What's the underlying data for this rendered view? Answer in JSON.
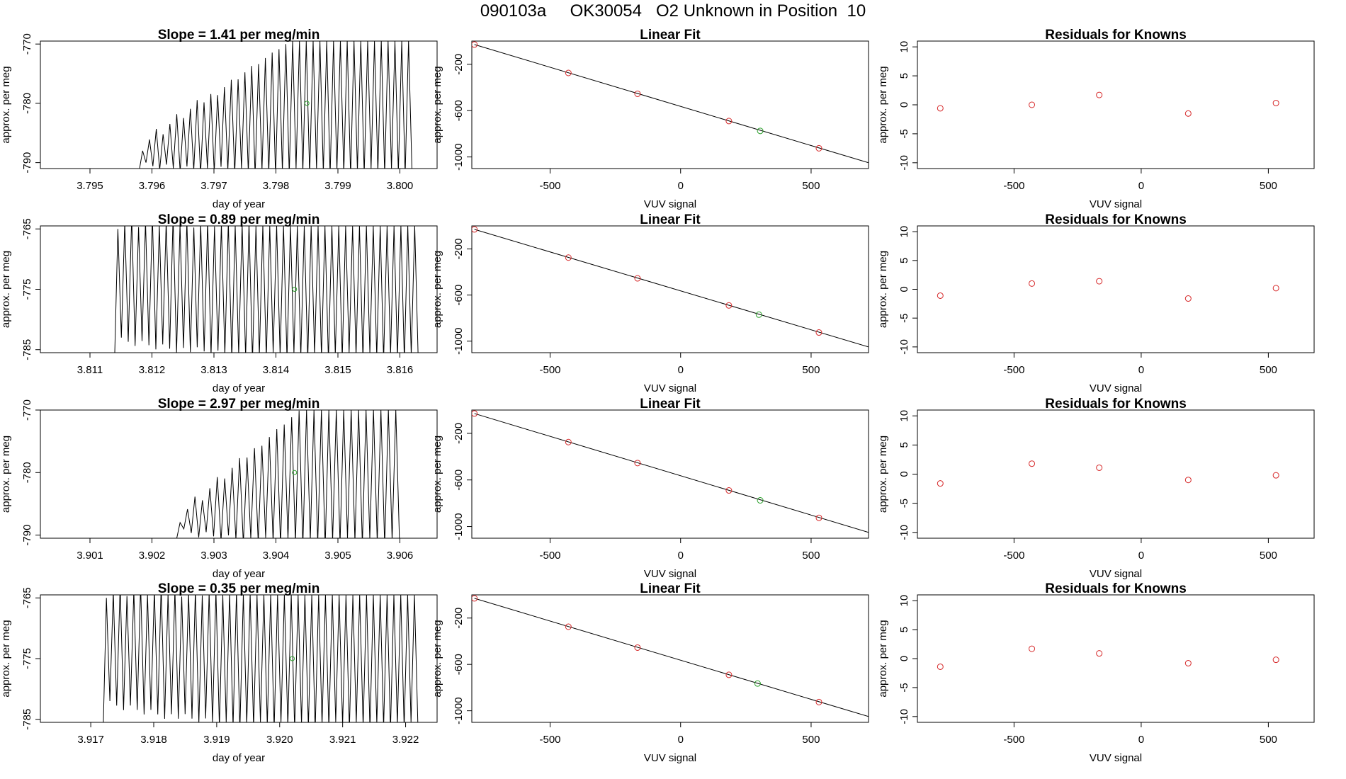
{
  "page_title": "090103a     OK30054   O2 Unknown in Position  10",
  "colors": {
    "data_line": "#000000",
    "known_points": "#d62728",
    "unknown_point": "#2ca02c"
  },
  "chart_data": [
    {
      "type": "line",
      "row": 1,
      "panel": "slope",
      "title": "Slope =  1.41  per meg/min",
      "xlabel": "day of year",
      "ylabel": "approx. per meg",
      "xlim": [
        3.7942,
        3.8006
      ],
      "ylim": [
        -791,
        -769.5
      ],
      "xticks": [
        "3.795",
        "3.796",
        "3.797",
        "3.798",
        "3.799",
        "3.800"
      ],
      "xtick_values": [
        3.795,
        3.796,
        3.797,
        3.798,
        3.799,
        3.8
      ],
      "yticks": [
        "-790",
        "-780",
        "-770"
      ],
      "ytick_values": [
        -790,
        -780,
        -770
      ],
      "baseline_y": -791,
      "osc_start": 3.7958,
      "osc_end": 3.8002,
      "osc_cycles": 40,
      "osc_top": [
        -788,
        -769.5
      ],
      "osc_bottom": [
        -790,
        -791
      ],
      "unknown_point": {
        "x": 3.7985,
        "y": -780
      }
    },
    {
      "type": "scatter",
      "row": 1,
      "panel": "fit",
      "title": "Linear Fit",
      "xlabel": "VUV signal",
      "ylabel": "approx. per meg",
      "xlim": [
        -800,
        720
      ],
      "ylim": [
        -1100,
        0
      ],
      "xticks": [
        "-500",
        "0",
        "500"
      ],
      "xtick_values": [
        -500,
        0,
        500
      ],
      "yticks": [
        "-200",
        "-600",
        "-1000"
      ],
      "ytick_values": [
        -200,
        -600,
        -1000
      ],
      "fit_line": [
        [
          -790,
          -30
        ],
        [
          720,
          -1050
        ]
      ],
      "known_points": [
        {
          "x": -790,
          "y": -30
        },
        {
          "x": -430,
          "y": -275
        },
        {
          "x": -165,
          "y": -455
        },
        {
          "x": 185,
          "y": -690
        },
        {
          "x": 530,
          "y": -925
        }
      ],
      "unknown_point": {
        "x": 305,
        "y": -775
      }
    },
    {
      "type": "scatter",
      "row": 1,
      "panel": "residuals",
      "title": "Residuals for Knowns",
      "xlabel": "VUV signal",
      "ylabel": "approx. per meg",
      "xlim": [
        -880,
        680
      ],
      "ylim": [
        -11,
        11
      ],
      "xticks": [
        "-500",
        "0",
        "500"
      ],
      "xtick_values": [
        -500,
        0,
        500
      ],
      "yticks": [
        "-10",
        "-5",
        "0",
        "5",
        "10"
      ],
      "ytick_values": [
        -10,
        -5,
        0,
        5,
        10
      ],
      "known_points": [
        {
          "x": -790,
          "y": -0.6
        },
        {
          "x": -430,
          "y": 0
        },
        {
          "x": -165,
          "y": 1.7
        },
        {
          "x": 185,
          "y": -1.5
        },
        {
          "x": 530,
          "y": 0.3
        }
      ]
    },
    {
      "type": "line",
      "row": 2,
      "panel": "slope",
      "title": "Slope =  0.89  per meg/min",
      "xlabel": "day of year",
      "ylabel": "approx. per meg",
      "xlim": [
        3.8102,
        3.8166
      ],
      "ylim": [
        -785.5,
        -764.5
      ],
      "xticks": [
        "3.811",
        "3.812",
        "3.813",
        "3.814",
        "3.815",
        "3.816"
      ],
      "xtick_values": [
        3.811,
        3.812,
        3.813,
        3.814,
        3.815,
        3.816
      ],
      "yticks": [
        "-785",
        "-775",
        "-765"
      ],
      "ytick_values": [
        -785,
        -775,
        -765
      ],
      "baseline_y": -785.5,
      "osc_start": 3.8114,
      "osc_end": 3.8163,
      "osc_cycles": 44,
      "osc_top": [
        -765,
        -764.5
      ],
      "osc_bottom": [
        -783,
        -785.5
      ],
      "unknown_point": {
        "x": 3.8143,
        "y": -775
      }
    },
    {
      "type": "scatter",
      "row": 2,
      "panel": "fit",
      "title": "Linear Fit",
      "xlabel": "VUV signal",
      "ylabel": "approx. per meg",
      "xlim": [
        -800,
        720
      ],
      "ylim": [
        -1100,
        0
      ],
      "xticks": [
        "-500",
        "0",
        "500"
      ],
      "xtick_values": [
        -500,
        0,
        500
      ],
      "yticks": [
        "-200",
        "-600",
        "-1000"
      ],
      "ytick_values": [
        -200,
        -600,
        -1000
      ],
      "fit_line": [
        [
          -790,
          -30
        ],
        [
          720,
          -1050
        ]
      ],
      "known_points": [
        {
          "x": -790,
          "y": -30
        },
        {
          "x": -430,
          "y": -275
        },
        {
          "x": -165,
          "y": -455
        },
        {
          "x": 185,
          "y": -690
        },
        {
          "x": 530,
          "y": -925
        }
      ],
      "unknown_point": {
        "x": 300,
        "y": -770
      }
    },
    {
      "type": "scatter",
      "row": 2,
      "panel": "residuals",
      "title": "Residuals for Knowns",
      "xlabel": "VUV signal",
      "ylabel": "approx. per meg",
      "xlim": [
        -880,
        680
      ],
      "ylim": [
        -11,
        11
      ],
      "xticks": [
        "-500",
        "0",
        "500"
      ],
      "xtick_values": [
        -500,
        0,
        500
      ],
      "yticks": [
        "-10",
        "-5",
        "0",
        "5",
        "10"
      ],
      "ytick_values": [
        -10,
        -5,
        0,
        5,
        10
      ],
      "known_points": [
        {
          "x": -790,
          "y": -1.1
        },
        {
          "x": -430,
          "y": 1
        },
        {
          "x": -165,
          "y": 1.4
        },
        {
          "x": 185,
          "y": -1.6
        },
        {
          "x": 530,
          "y": 0.2
        }
      ]
    },
    {
      "type": "line",
      "row": 3,
      "panel": "slope",
      "title": "Slope =  2.97  per meg/min",
      "xlabel": "day of year",
      "ylabel": "approx. per meg",
      "xlim": [
        3.9002,
        3.9066
      ],
      "ylim": [
        -790.5,
        -770
      ],
      "xticks": [
        "3.901",
        "3.902",
        "3.903",
        "3.904",
        "3.905",
        "3.906"
      ],
      "xtick_values": [
        3.901,
        3.902,
        3.903,
        3.904,
        3.905,
        3.906
      ],
      "yticks": [
        "-790",
        "-780",
        "-770"
      ],
      "ytick_values": [
        -790,
        -780,
        -770
      ],
      "baseline_y": -790.5,
      "osc_start": 3.9024,
      "osc_end": 3.906,
      "osc_cycles": 30,
      "osc_top": [
        -788,
        -770
      ],
      "osc_bottom": [
        -789,
        -790.5
      ],
      "unknown_point": {
        "x": 3.9043,
        "y": -780
      }
    },
    {
      "type": "scatter",
      "row": 3,
      "panel": "fit",
      "title": "Linear Fit",
      "xlabel": "VUV signal",
      "ylabel": "approx. per meg",
      "xlim": [
        -800,
        720
      ],
      "ylim": [
        -1100,
        0
      ],
      "xticks": [
        "-500",
        "0",
        "500"
      ],
      "xtick_values": [
        -500,
        0,
        500
      ],
      "yticks": [
        "-200",
        "-600",
        "-1000"
      ],
      "ytick_values": [
        -200,
        -600,
        -1000
      ],
      "fit_line": [
        [
          -790,
          -30
        ],
        [
          720,
          -1050
        ]
      ],
      "known_points": [
        {
          "x": -790,
          "y": -30
        },
        {
          "x": -430,
          "y": -275
        },
        {
          "x": -165,
          "y": -455
        },
        {
          "x": 185,
          "y": -690
        },
        {
          "x": 530,
          "y": -925
        }
      ],
      "unknown_point": {
        "x": 305,
        "y": -775
      }
    },
    {
      "type": "scatter",
      "row": 3,
      "panel": "residuals",
      "title": "Residuals for Knowns",
      "xlabel": "VUV signal",
      "ylabel": "approx. per meg",
      "xlim": [
        -880,
        680
      ],
      "ylim": [
        -11,
        11
      ],
      "xticks": [
        "-500",
        "0",
        "500"
      ],
      "xtick_values": [
        -500,
        0,
        500
      ],
      "yticks": [
        "-10",
        "-5",
        "0",
        "5",
        "10"
      ],
      "ytick_values": [
        -10,
        -5,
        0,
        5,
        10
      ],
      "known_points": [
        {
          "x": -790,
          "y": -1.6
        },
        {
          "x": -430,
          "y": 1.8
        },
        {
          "x": -165,
          "y": 1.1
        },
        {
          "x": 185,
          "y": -1
        },
        {
          "x": 530,
          "y": -0.2
        }
      ]
    },
    {
      "type": "line",
      "row": 4,
      "panel": "slope",
      "title": "Slope =  0.35  per meg/min",
      "xlabel": "day of year",
      "ylabel": "approx. per meg",
      "xlim": [
        3.9162,
        3.9225
      ],
      "ylim": [
        -785.5,
        -764.5
      ],
      "xticks": [
        "3.917",
        "3.918",
        "3.919",
        "3.920",
        "3.921",
        "3.922"
      ],
      "xtick_values": [
        3.917,
        3.918,
        3.919,
        3.92,
        3.921,
        3.922
      ],
      "yticks": [
        "-785",
        "-775",
        "-765"
      ],
      "ytick_values": [
        -785,
        -775,
        -765
      ],
      "baseline_y": -785.5,
      "osc_start": 3.9172,
      "osc_end": 3.9222,
      "osc_cycles": 46,
      "osc_top": [
        -765,
        -764.5
      ],
      "osc_bottom": [
        -782,
        -785.5
      ],
      "unknown_point": {
        "x": 3.9202,
        "y": -775
      }
    },
    {
      "type": "scatter",
      "row": 4,
      "panel": "fit",
      "title": "Linear Fit",
      "xlabel": "VUV signal",
      "ylabel": "approx. per meg",
      "xlim": [
        -800,
        720
      ],
      "ylim": [
        -1100,
        0
      ],
      "xticks": [
        "-500",
        "0",
        "500"
      ],
      "xtick_values": [
        -500,
        0,
        500
      ],
      "yticks": [
        "-200",
        "-600",
        "-1000"
      ],
      "ytick_values": [
        -200,
        -600,
        -1000
      ],
      "fit_line": [
        [
          -790,
          -30
        ],
        [
          720,
          -1050
        ]
      ],
      "known_points": [
        {
          "x": -790,
          "y": -30
        },
        {
          "x": -430,
          "y": -275
        },
        {
          "x": -165,
          "y": -455
        },
        {
          "x": 185,
          "y": -690
        },
        {
          "x": 530,
          "y": -925
        }
      ],
      "unknown_point": {
        "x": 295,
        "y": -765
      }
    },
    {
      "type": "scatter",
      "row": 4,
      "panel": "residuals",
      "title": "Residuals for Knowns",
      "xlabel": "VUV signal",
      "ylabel": "approx. per meg",
      "xlim": [
        -880,
        680
      ],
      "ylim": [
        -11,
        11
      ],
      "xticks": [
        "-500",
        "0",
        "500"
      ],
      "xtick_values": [
        -500,
        0,
        500
      ],
      "yticks": [
        "-10",
        "-5",
        "0",
        "5",
        "10"
      ],
      "ytick_values": [
        -10,
        -5,
        0,
        5,
        10
      ],
      "known_points": [
        {
          "x": -790,
          "y": -1.4
        },
        {
          "x": -430,
          "y": 1.7
        },
        {
          "x": -165,
          "y": 0.9
        },
        {
          "x": 185,
          "y": -0.8
        },
        {
          "x": 530,
          "y": -0.2
        }
      ]
    }
  ]
}
